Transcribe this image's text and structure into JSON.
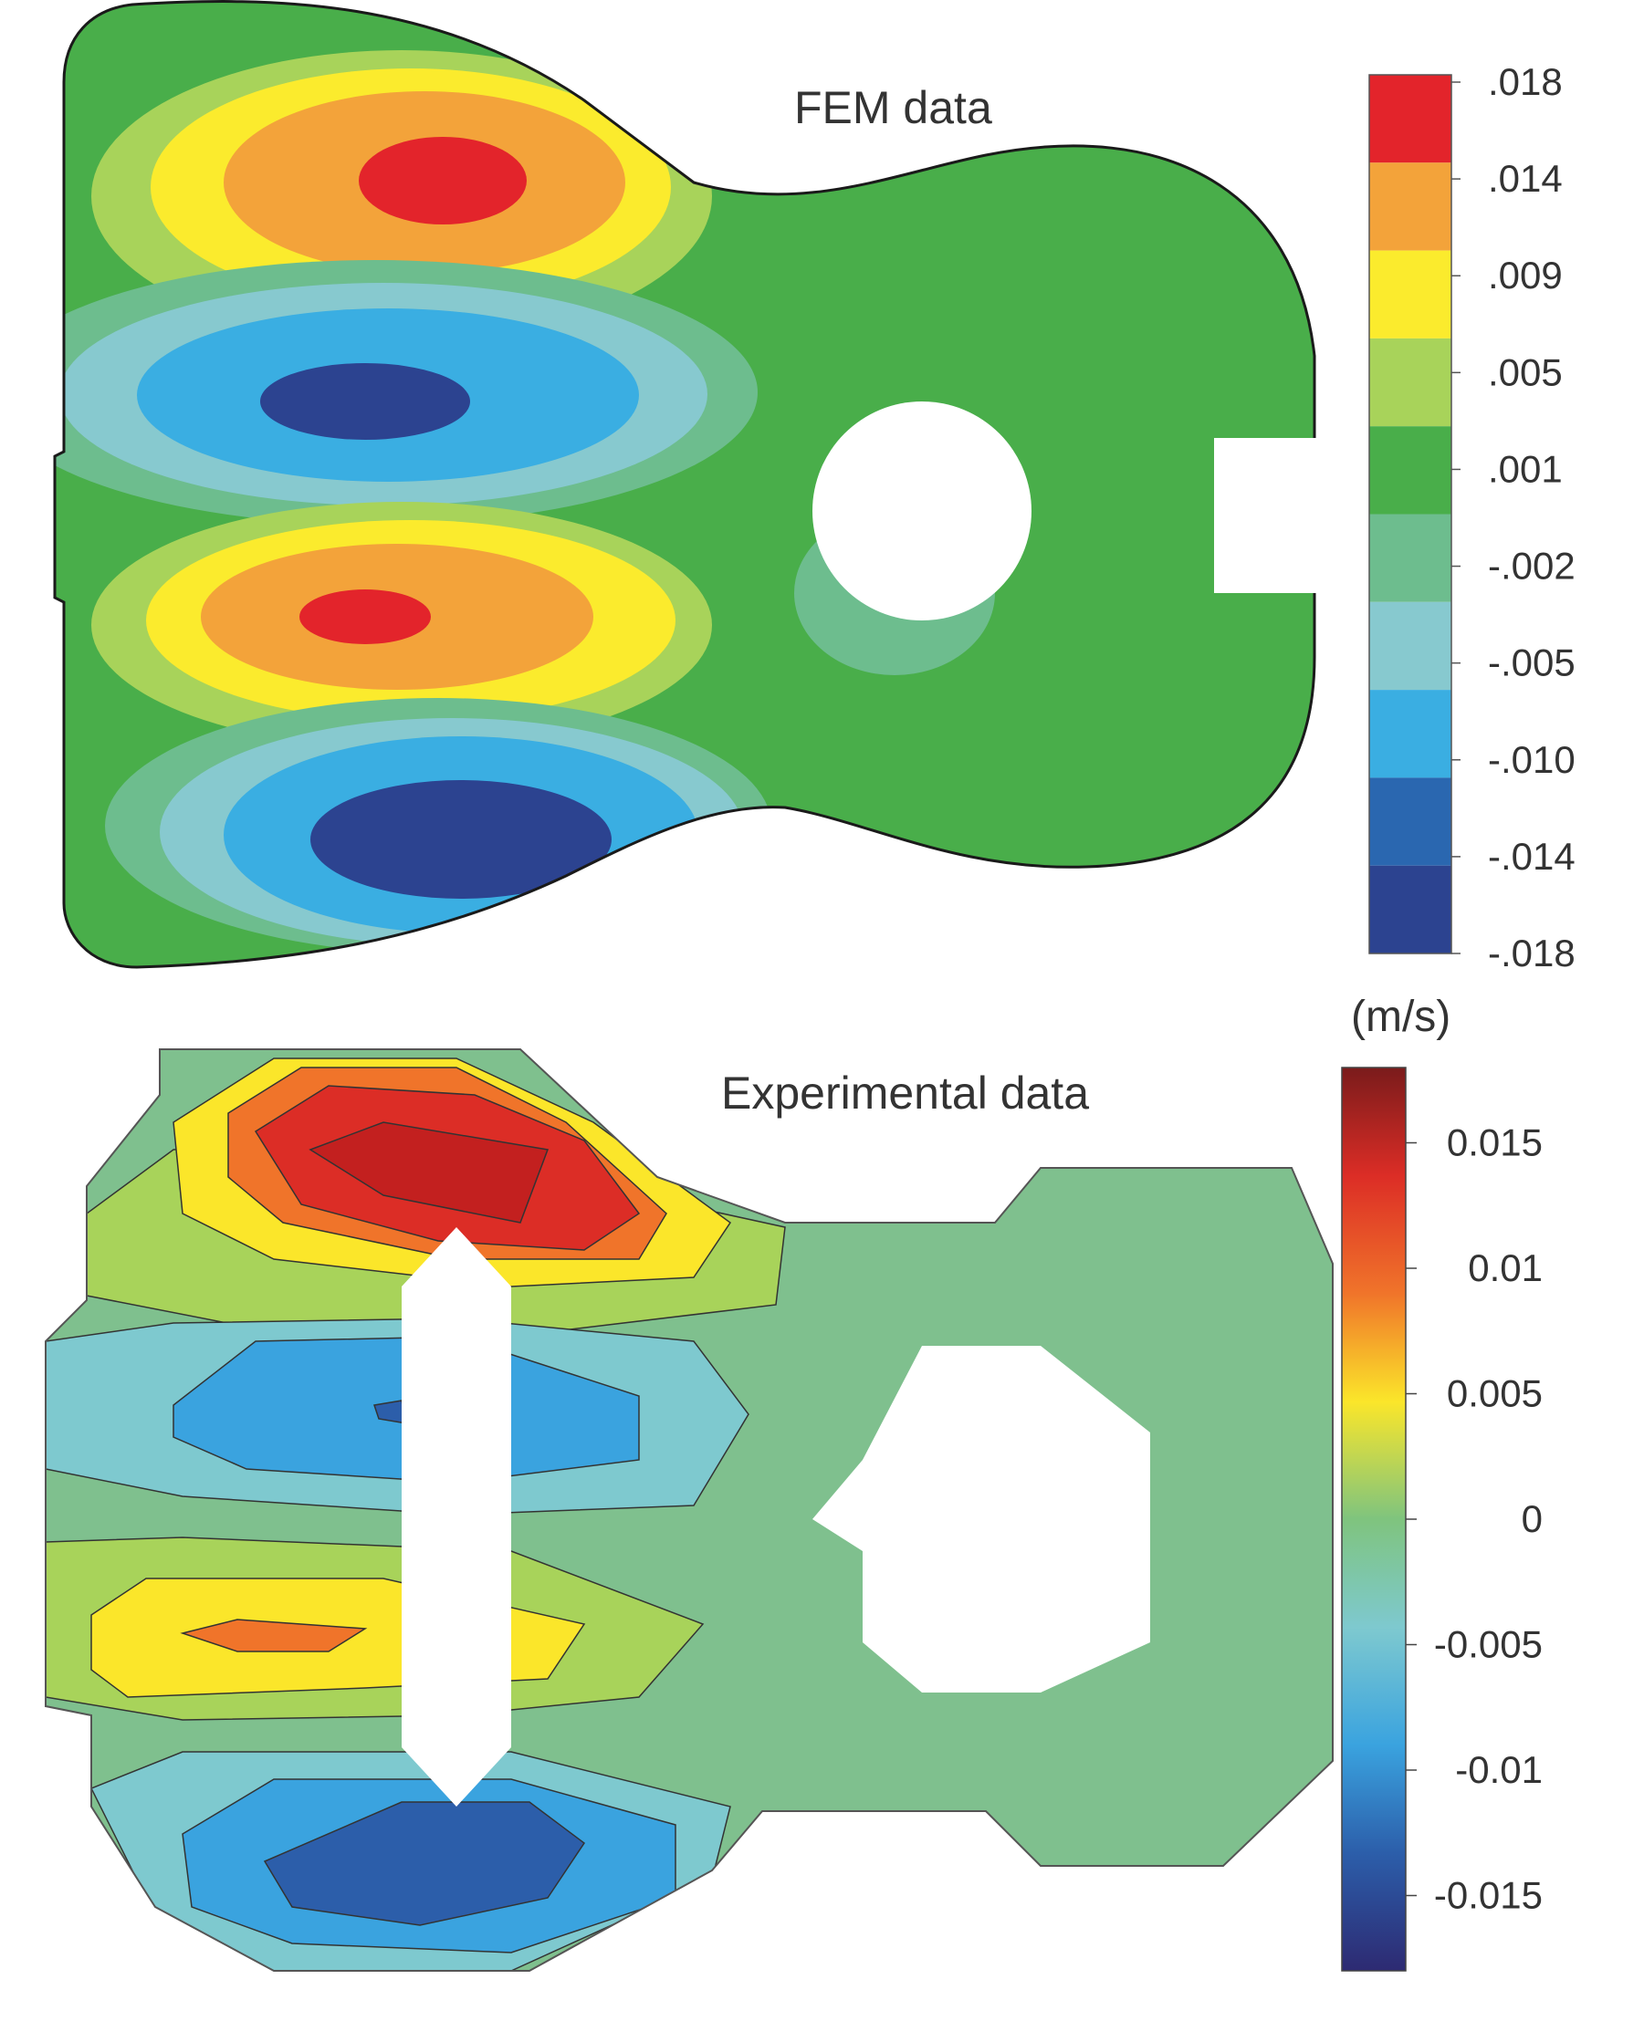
{
  "chart_data": [
    {
      "type": "heatmap",
      "title": "FEM data",
      "colorbar": {
        "tick_labels": [
          ".018",
          ".014",
          ".009",
          ".005",
          ".001",
          "-.002",
          "-.005",
          "-.010",
          "-.014",
          "-.018"
        ],
        "bands": [
          "#e3242b",
          "#f3a33a",
          "#fbeb2d",
          "#a8d35a",
          "#49ae4a",
          "#6dbd8e",
          "#87c9cf",
          "#3aaee2",
          "#2a67b0",
          "#2c4390"
        ]
      },
      "regions": [
        {
          "name": "upper bout lobe 1",
          "sign": "positive",
          "peak_level": ".018"
        },
        {
          "name": "upper bout lobe 2",
          "sign": "negative",
          "peak_level": "-.018"
        },
        {
          "name": "lower bout lobe 3",
          "sign": "positive",
          "peak_level": ".018"
        },
        {
          "name": "lower bout lobe 4",
          "sign": "negative",
          "peak_level": "-.018"
        }
      ]
    },
    {
      "type": "heatmap",
      "title": "Experimental data",
      "unit": "(m/s)",
      "colorbar": {
        "tick_labels": [
          "0.015",
          "0.01",
          "0.005",
          "0",
          "-0.005",
          "-0.01",
          "-0.015"
        ],
        "range": [
          -0.018,
          0.018
        ],
        "colormap": "jet"
      },
      "regions": [
        {
          "name": "lobe 1",
          "sign": "positive",
          "peak": 0.015
        },
        {
          "name": "lobe 2",
          "sign": "negative",
          "peak": -0.008
        },
        {
          "name": "lobe 3",
          "sign": "positive",
          "peak": 0.008
        },
        {
          "name": "lobe 4",
          "sign": "negative",
          "peak": -0.014
        }
      ]
    }
  ]
}
